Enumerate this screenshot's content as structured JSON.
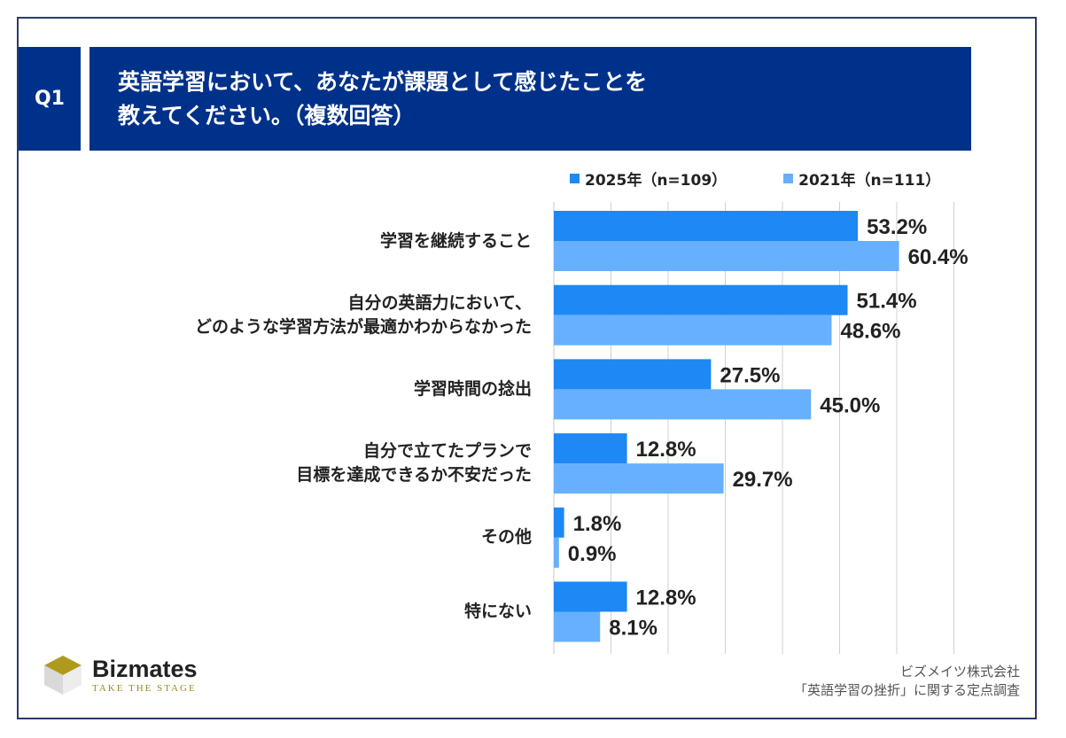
{
  "question": {
    "badge": "Q1",
    "title_line1": "英語学習において、あなたが課題として感じたことを",
    "title_line2": "教えてください。（複数回答）"
  },
  "colors": {
    "header": "#00318a",
    "series_2025": "#1e88f5",
    "series_2021": "#66b0ff",
    "gridline": "#d0d0d0"
  },
  "chart_data": {
    "type": "bar",
    "orientation": "horizontal",
    "categories": [
      [
        "学習を継続すること"
      ],
      [
        "自分の英語力において、",
        "どのような学習方法が最適かわからなかった"
      ],
      [
        "学習時間の捻出"
      ],
      [
        "自分で立てたプランで",
        "目標を達成できるか不安だった"
      ],
      [
        "その他"
      ],
      [
        "特にない"
      ]
    ],
    "series": [
      {
        "name": "2025年（n=109）",
        "values": [
          53.2,
          51.4,
          27.5,
          12.8,
          1.8,
          12.8
        ],
        "color": "#1e88f5"
      },
      {
        "name": "2021年（n=111）",
        "values": [
          60.4,
          48.6,
          45.0,
          29.7,
          0.9,
          8.1
        ],
        "color": "#66b0ff"
      }
    ],
    "value_labels": [
      [
        "53.2%",
        "51.4%",
        "27.5%",
        "12.8%",
        "1.8%",
        "12.8%"
      ],
      [
        "60.4%",
        "48.6%",
        "45.0%",
        "29.7%",
        "0.9%",
        "8.1%"
      ]
    ],
    "xlim": [
      0,
      70
    ],
    "grid": true,
    "legend_position": "top"
  },
  "branding": {
    "logo_name": "Bizmates",
    "logo_tagline": "TAKE THE STAGE",
    "source_line1": "ビズメイツ株式会社",
    "source_line2": "「英語学習の挫折」に関する定点調査"
  }
}
